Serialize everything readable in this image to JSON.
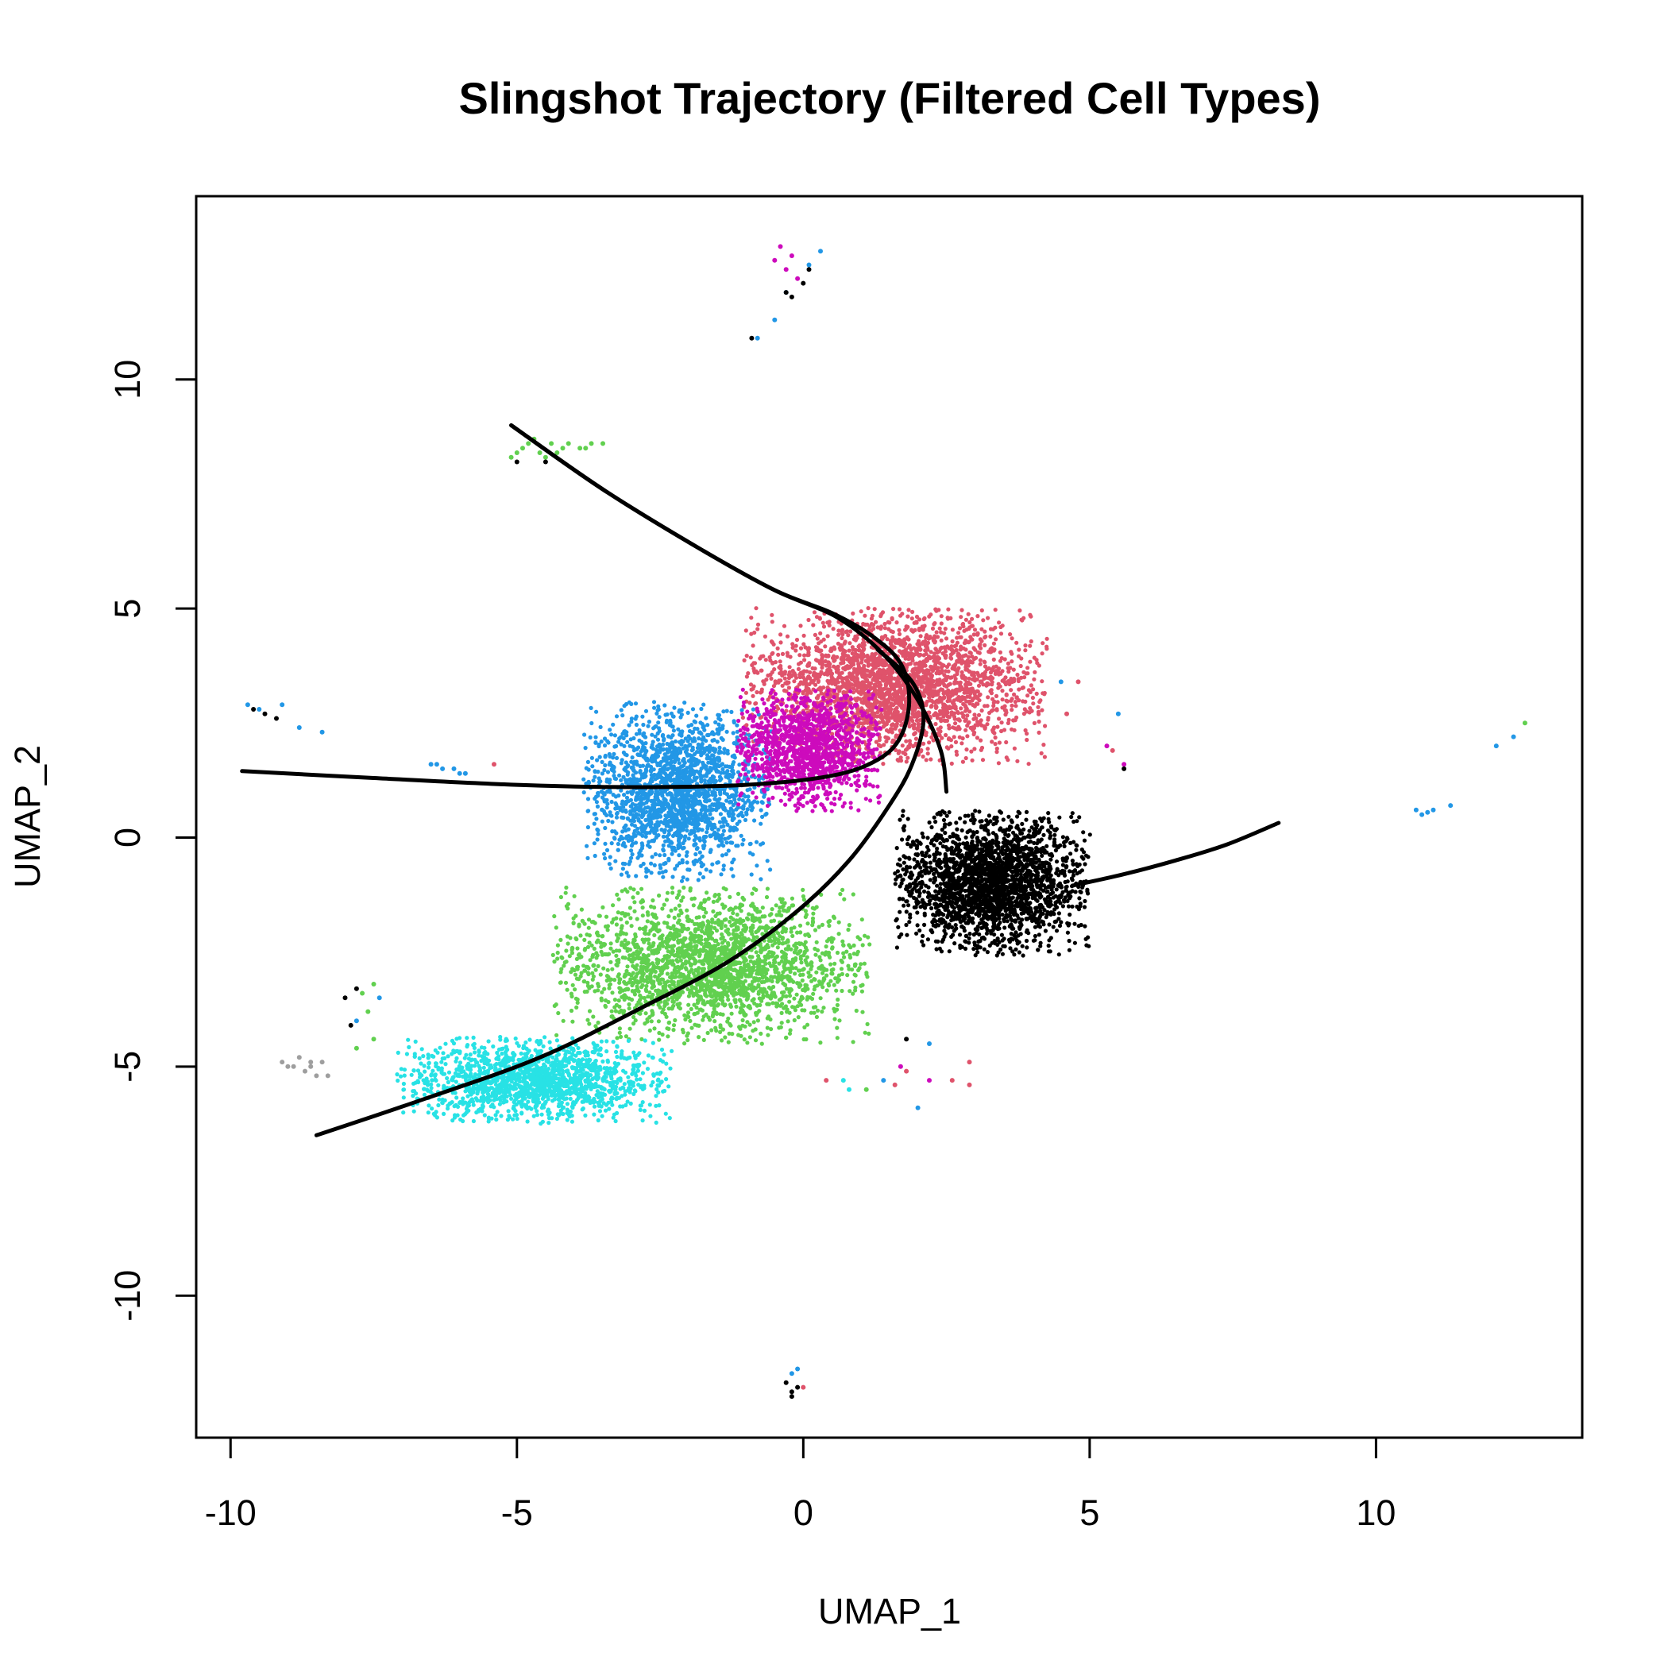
{
  "chart_data": {
    "type": "scatter",
    "title": "Slingshot Trajectory (Filtered Cell Types)",
    "xlabel": "UMAP_1",
    "ylabel": "UMAP_2",
    "xlim": [
      -10.6,
      13.6
    ],
    "ylim": [
      -13.1,
      14.0
    ],
    "xticks": [
      -10,
      -5,
      0,
      5,
      10
    ],
    "yticks": [
      -10,
      -5,
      0,
      5,
      10
    ],
    "xtick_labels": [
      "-10",
      "-5",
      "0",
      "5",
      "10"
    ],
    "ytick_labels": [
      "-10",
      "-5",
      "0",
      "5",
      "10"
    ],
    "grid": false,
    "legend": "none",
    "colors": {
      "red": "#DF536B",
      "blue": "#2297E6",
      "magenta": "#CD0BBC",
      "green": "#61D04F",
      "cyan": "#28E2E5",
      "black": "#000000",
      "gray": "#9E9E9E",
      "curve": "#000000"
    },
    "clusters": [
      {
        "color": "red",
        "center": [
          1.6,
          3.3
        ],
        "spread": [
          2.1,
          1.35
        ],
        "n": 2600
      },
      {
        "color": "blue",
        "center": [
          -2.2,
          1.0
        ],
        "spread": [
          1.3,
          1.55
        ],
        "n": 1900
      },
      {
        "color": "magenta",
        "center": [
          0.1,
          1.9
        ],
        "spread": [
          1.0,
          1.05
        ],
        "n": 1300
      },
      {
        "color": "green",
        "center": [
          -1.6,
          -2.8
        ],
        "spread": [
          2.2,
          1.35
        ],
        "n": 2300
      },
      {
        "color": "cyan",
        "center": [
          -4.7,
          -5.3
        ],
        "spread": [
          1.9,
          0.75
        ],
        "n": 1600
      },
      {
        "color": "black",
        "center": [
          3.3,
          -1.0
        ],
        "spread": [
          1.35,
          1.25
        ],
        "n": 2300
      }
    ],
    "outliers": [
      {
        "color": "magenta",
        "points": [
          [
            -0.5,
            12.6
          ],
          [
            -0.3,
            12.4
          ],
          [
            -0.1,
            12.2
          ],
          [
            -0.4,
            12.9
          ],
          [
            -0.2,
            12.7
          ]
        ]
      },
      {
        "color": "blue",
        "points": [
          [
            0.3,
            12.8
          ],
          [
            0.1,
            12.5
          ],
          [
            -0.5,
            11.3
          ],
          [
            -0.8,
            10.9
          ],
          [
            -0.3,
            11.9
          ]
        ]
      },
      {
        "color": "black",
        "points": [
          [
            -0.3,
            11.9
          ],
          [
            0.0,
            12.1
          ],
          [
            0.1,
            12.4
          ],
          [
            -0.2,
            11.8
          ],
          [
            -0.9,
            10.9
          ]
        ]
      },
      {
        "color": "green",
        "points": [
          [
            -5.0,
            8.4
          ],
          [
            -4.8,
            8.6
          ],
          [
            -4.6,
            8.4
          ],
          [
            -4.4,
            8.6
          ],
          [
            -4.2,
            8.5
          ],
          [
            -3.9,
            8.5
          ],
          [
            -3.7,
            8.6
          ],
          [
            -3.5,
            8.6
          ],
          [
            -5.1,
            8.3
          ],
          [
            -4.7,
            8.7
          ],
          [
            -4.5,
            8.3
          ],
          [
            -4.3,
            8.4
          ],
          [
            -4.9,
            8.5
          ],
          [
            -4.1,
            8.6
          ],
          [
            -3.8,
            8.5
          ]
        ]
      },
      {
        "color": "black",
        "points": [
          [
            -5.0,
            8.2
          ],
          [
            -4.5,
            8.2
          ]
        ]
      },
      {
        "color": "blue",
        "points": [
          [
            -9.7,
            2.9
          ],
          [
            -9.5,
            2.8
          ],
          [
            -9.1,
            2.9
          ],
          [
            -8.8,
            2.4
          ],
          [
            -8.4,
            2.3
          ],
          [
            -6.5,
            1.6
          ],
          [
            -6.3,
            1.5
          ],
          [
            -6.1,
            1.5
          ],
          [
            -6.4,
            1.6
          ],
          [
            -6.0,
            1.4
          ],
          [
            -5.9,
            1.4
          ]
        ]
      },
      {
        "color": "black",
        "points": [
          [
            -9.6,
            2.8
          ],
          [
            -9.4,
            2.7
          ],
          [
            -9.2,
            2.6
          ]
        ]
      },
      {
        "color": "red",
        "points": [
          [
            -5.4,
            1.6
          ]
        ]
      },
      {
        "color": "gray",
        "points": [
          [
            -9.1,
            -4.9
          ],
          [
            -8.9,
            -5.0
          ],
          [
            -8.7,
            -5.1
          ],
          [
            -8.6,
            -4.9
          ],
          [
            -8.5,
            -5.2
          ],
          [
            -8.3,
            -5.2
          ],
          [
            -8.8,
            -4.8
          ],
          [
            -8.4,
            -4.9
          ],
          [
            -9.0,
            -5.0
          ],
          [
            -8.6,
            -5.0
          ]
        ]
      },
      {
        "color": "black",
        "points": [
          [
            -7.8,
            -3.3
          ],
          [
            -7.9,
            -4.1
          ],
          [
            -8.0,
            -3.5
          ]
        ]
      },
      {
        "color": "green",
        "points": [
          [
            -7.5,
            -3.2
          ],
          [
            -7.6,
            -3.8
          ],
          [
            -7.5,
            -4.4
          ],
          [
            -7.8,
            -4.6
          ],
          [
            -7.7,
            -3.4
          ]
        ]
      },
      {
        "color": "blue",
        "points": [
          [
            -7.8,
            -4.0
          ],
          [
            -7.4,
            -3.5
          ]
        ]
      },
      {
        "color": "red",
        "points": [
          [
            2.9,
            -4.9
          ],
          [
            2.9,
            -5.4
          ],
          [
            2.6,
            -5.3
          ],
          [
            1.8,
            -5.1
          ],
          [
            1.6,
            -5.4
          ],
          [
            0.4,
            -5.3
          ],
          [
            3.1,
            3.4
          ],
          [
            4.8,
            3.4
          ],
          [
            5.4,
            1.9
          ],
          [
            4.6,
            2.7
          ]
        ]
      },
      {
        "color": "blue",
        "points": [
          [
            2.2,
            -4.5
          ],
          [
            2.0,
            -5.9
          ],
          [
            1.4,
            -5.3
          ],
          [
            10.7,
            0.6
          ],
          [
            10.8,
            0.5
          ],
          [
            11.0,
            0.6
          ],
          [
            10.9,
            0.55
          ],
          [
            11.3,
            0.7
          ],
          [
            12.1,
            2.0
          ],
          [
            12.4,
            2.2
          ],
          [
            5.5,
            2.7
          ],
          [
            4.5,
            3.4
          ]
        ]
      },
      {
        "color": "magenta",
        "points": [
          [
            1.7,
            -5.0
          ],
          [
            2.2,
            -5.3
          ],
          [
            5.3,
            2.0
          ],
          [
            5.6,
            1.6
          ]
        ]
      },
      {
        "color": "cyan",
        "points": [
          [
            0.7,
            -5.3
          ],
          [
            0.8,
            -5.5
          ]
        ]
      },
      {
        "color": "green",
        "points": [
          [
            1.1,
            -5.5
          ],
          [
            12.6,
            2.5
          ]
        ]
      },
      {
        "color": "black",
        "points": [
          [
            1.8,
            -4.4
          ],
          [
            5.6,
            1.5
          ]
        ]
      },
      {
        "color": "black",
        "points": [
          [
            -0.3,
            -11.9
          ],
          [
            -0.2,
            -12.1
          ],
          [
            -0.1,
            -12.0
          ],
          [
            -0.2,
            -12.2
          ]
        ]
      },
      {
        "color": "blue",
        "points": [
          [
            -0.1,
            -11.6
          ],
          [
            -0.2,
            -11.7
          ]
        ]
      },
      {
        "color": "red",
        "points": [
          [
            0.0,
            -12.0
          ]
        ]
      }
    ],
    "curves": [
      {
        "points": [
          [
            -5.1,
            9.0
          ],
          [
            -3.5,
            7.6
          ],
          [
            -1.8,
            6.3
          ],
          [
            -0.5,
            5.4
          ],
          [
            0.5,
            4.9
          ],
          [
            1.2,
            4.4
          ],
          [
            1.7,
            3.8
          ],
          [
            1.85,
            3.0
          ],
          [
            1.7,
            2.2
          ],
          [
            1.3,
            1.7
          ],
          [
            0.5,
            1.35
          ],
          [
            -1.0,
            1.15
          ],
          [
            -3.0,
            1.1
          ],
          [
            -5.0,
            1.15
          ],
          [
            -7.5,
            1.3
          ],
          [
            -9.8,
            1.45
          ]
        ]
      },
      {
        "points": [
          [
            -5.1,
            9.0
          ],
          [
            -3.5,
            7.6
          ],
          [
            -1.8,
            6.3
          ],
          [
            -0.5,
            5.4
          ],
          [
            0.6,
            4.8
          ],
          [
            1.4,
            4.0
          ],
          [
            2.0,
            3.0
          ],
          [
            2.4,
            1.9
          ],
          [
            2.5,
            1.0
          ]
        ]
      },
      {
        "points": [
          [
            1.3,
            4.1
          ],
          [
            1.9,
            3.4
          ],
          [
            2.1,
            2.6
          ],
          [
            1.9,
            1.6
          ],
          [
            1.5,
            0.7
          ],
          [
            0.8,
            -0.5
          ],
          [
            -0.1,
            -1.6
          ],
          [
            -1.3,
            -2.7
          ],
          [
            -2.8,
            -3.7
          ],
          [
            -4.6,
            -4.8
          ],
          [
            -6.6,
            -5.7
          ],
          [
            -8.5,
            -6.5
          ]
        ]
      },
      {
        "points": [
          [
            4.7,
            -1.05
          ],
          [
            5.6,
            -0.8
          ],
          [
            6.5,
            -0.5
          ],
          [
            7.4,
            -0.15
          ],
          [
            8.3,
            0.32
          ]
        ]
      }
    ]
  }
}
